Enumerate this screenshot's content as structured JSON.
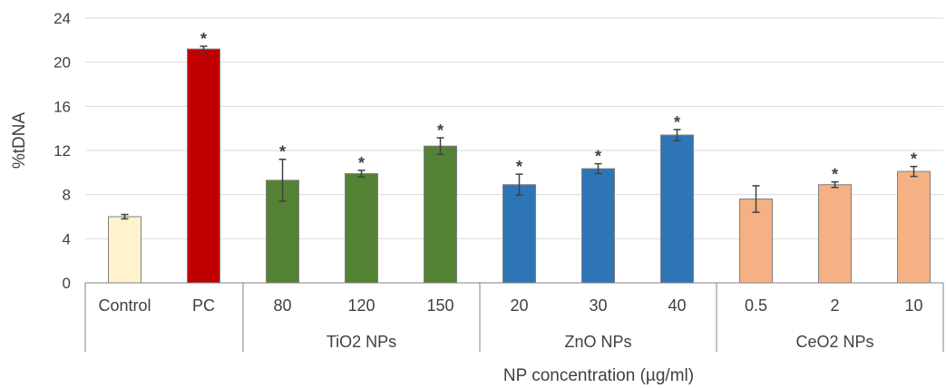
{
  "chart_data": {
    "type": "bar",
    "ylabel": "%tDNA",
    "xlabel": "NP concentration (µg/ml)",
    "ylim": [
      0,
      24
    ],
    "yticks": [
      "0",
      "4",
      "8",
      "12",
      "16",
      "20",
      "24"
    ],
    "ytick_values": [
      0,
      4,
      8,
      12,
      16,
      20,
      24
    ],
    "grid": true,
    "categories": [
      "Control",
      "PC",
      "80",
      "120",
      "150",
      "20",
      "30",
      "40",
      "0.5",
      "2",
      "10"
    ],
    "values": [
      6.0,
      21.2,
      9.3,
      9.9,
      12.4,
      8.9,
      10.35,
      13.4,
      7.6,
      8.9,
      10.1
    ],
    "errors": [
      0.2,
      0.25,
      1.9,
      0.3,
      0.75,
      0.95,
      0.45,
      0.5,
      1.2,
      0.25,
      0.45
    ],
    "significant": [
      false,
      true,
      true,
      true,
      true,
      true,
      true,
      true,
      false,
      true,
      true
    ],
    "significance_marker": "*",
    "colors": [
      "#fff2cc",
      "#c00000",
      "#548235",
      "#548235",
      "#548235",
      "#2e75b6",
      "#2e75b6",
      "#2e75b6",
      "#f4b183",
      "#f4b183",
      "#f4b183"
    ],
    "bar_outline": "#7f7f7f",
    "groups": [
      {
        "label": "",
        "span": [
          0,
          1
        ]
      },
      {
        "label": "TiO2 NPs",
        "span": [
          2,
          4
        ]
      },
      {
        "label": "ZnO NPs",
        "span": [
          5,
          7
        ]
      },
      {
        "label": "CeO2 NPs",
        "span": [
          8,
          10
        ]
      }
    ]
  }
}
